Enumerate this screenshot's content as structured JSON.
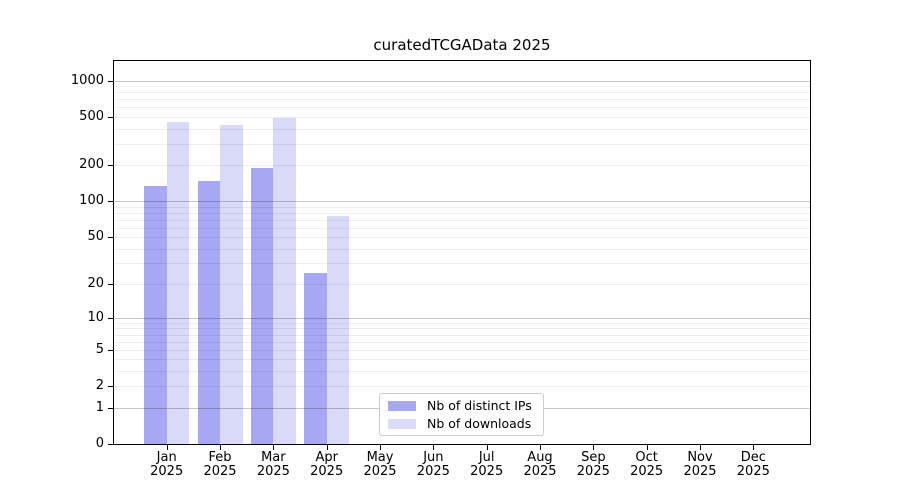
{
  "chart_data": {
    "type": "bar",
    "title": "curatedTCGAData 2025",
    "categories": [
      "Jan",
      "Feb",
      "Mar",
      "Apr",
      "May",
      "Jun",
      "Jul",
      "Aug",
      "Sep",
      "Oct",
      "Nov",
      "Dec"
    ],
    "year_label": "2025",
    "series": [
      {
        "name": "Nb of distinct IPs",
        "color": "#a7a7f3",
        "values": [
          135,
          147,
          190,
          25,
          0,
          0,
          0,
          0,
          0,
          0,
          0,
          0
        ]
      },
      {
        "name": "Nb of downloads",
        "color": "#d9d9f8",
        "values": [
          450,
          425,
          490,
          75,
          0,
          0,
          0,
          0,
          0,
          0,
          0,
          0
        ]
      }
    ],
    "y_axis": {
      "scale": "log1p",
      "ticks": [
        1000,
        500,
        200,
        100,
        50,
        20,
        10,
        5,
        2,
        1,
        0
      ],
      "major_gridlines": [
        1,
        10,
        100,
        1000
      ],
      "minor_decades": [
        1,
        10,
        100
      ],
      "max": 1450,
      "min": 0
    },
    "xlabel": "",
    "ylabel": "",
    "grid": true,
    "legend": {
      "position": "lower center",
      "entries": [
        "Nb of distinct IPs",
        "Nb of downloads"
      ]
    }
  }
}
